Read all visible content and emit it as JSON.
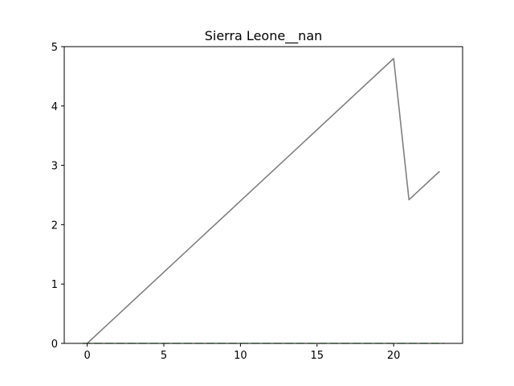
{
  "chart_data": {
    "type": "line",
    "title": "Sierra Leone__nan",
    "xlabel": "",
    "ylabel": "",
    "xlim": [
      -1.5,
      24.5
    ],
    "ylim": [
      0,
      5
    ],
    "grid": false,
    "x_ticks": [
      0,
      5,
      10,
      15,
      20
    ],
    "y_ticks": [
      0,
      1,
      2,
      3,
      4,
      5
    ],
    "series": [
      {
        "color": "#808080",
        "style": "solid",
        "x": [
          0,
          20,
          21,
          23
        ],
        "y": [
          0.0,
          4.8,
          2.42,
          2.9
        ]
      },
      {
        "color": "#7fbf7f",
        "style": "dashed",
        "x": [
          -0.3,
          23.3
        ],
        "y": [
          0.0,
          0.0
        ]
      }
    ]
  }
}
